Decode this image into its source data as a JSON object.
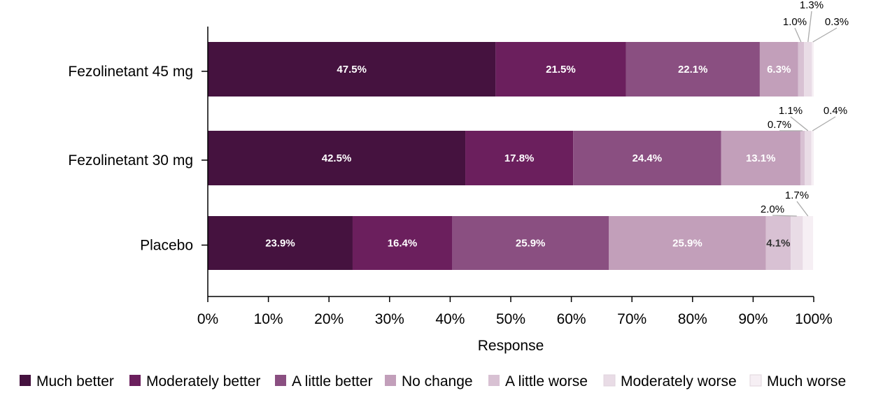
{
  "chart_data": {
    "type": "bar",
    "orientation": "horizontal",
    "stacked": true,
    "xlabel": "Response",
    "ylabel": "",
    "xlim": [
      0,
      100
    ],
    "x_ticks": [
      "0%",
      "10%",
      "20%",
      "30%",
      "40%",
      "50%",
      "60%",
      "70%",
      "80%",
      "90%",
      "100%"
    ],
    "grid": false,
    "legend_position": "bottom",
    "categories": [
      "Fezolinetant 45 mg",
      "Fezolinetant 30 mg",
      "Placebo"
    ],
    "series": [
      {
        "name": "Much better",
        "color": "#45123f",
        "values": [
          47.5,
          42.5,
          23.9
        ],
        "labels": [
          "47.5%",
          "42.5%",
          "23.9%"
        ]
      },
      {
        "name": "Moderately better",
        "color": "#6b1f5d",
        "values": [
          21.5,
          17.8,
          16.4
        ],
        "labels": [
          "21.5%",
          "17.8%",
          "16.4%"
        ]
      },
      {
        "name": "A little better",
        "color": "#8a4f81",
        "values": [
          22.1,
          24.4,
          25.9
        ],
        "labels": [
          "22.1%",
          "24.4%",
          "25.9%"
        ]
      },
      {
        "name": "No change",
        "color": "#c29fba",
        "values": [
          6.3,
          13.1,
          25.9
        ],
        "labels": [
          "6.3%",
          "13.1%",
          "25.9%"
        ]
      },
      {
        "name": "A little worse",
        "color": "#d8c1d3",
        "values": [
          1.0,
          0.7,
          4.1
        ],
        "labels": [
          "1.0%",
          "0.7%",
          "4.1%"
        ]
      },
      {
        "name": "Moderately worse",
        "color": "#e9dcE6",
        "values": [
          1.3,
          1.1,
          2.0
        ],
        "labels": [
          "1.3%",
          "1.1%",
          "2.0%"
        ]
      },
      {
        "name": "Much worse",
        "color": "#f6eff4",
        "values": [
          0.3,
          0.4,
          1.7
        ],
        "labels": [
          "0.3%",
          "0.4%",
          "1.7%"
        ]
      }
    ]
  }
}
